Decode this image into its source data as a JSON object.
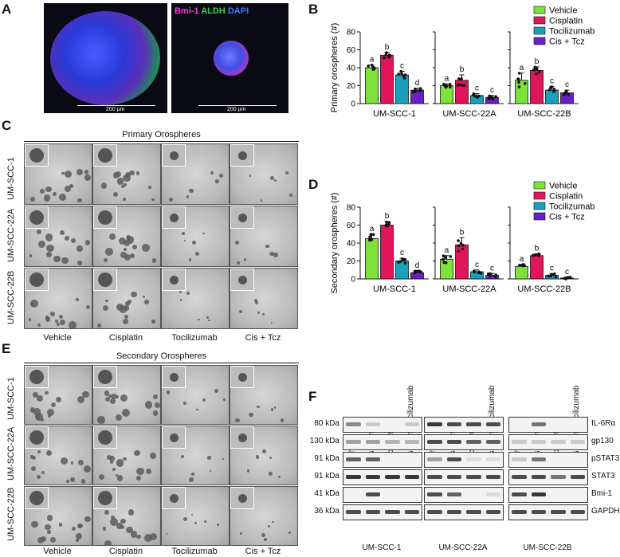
{
  "panels": {
    "a": "A",
    "b": "B",
    "c": "C",
    "d": "D",
    "e": "E",
    "f": "F"
  },
  "panel_a": {
    "stain_bmi1": "Bmi-1",
    "stain_aldh": "ALDH",
    "stain_dapi": "DAPI",
    "scalebar_1": "200 µm",
    "scalebar_2": "200 µm",
    "colors": {
      "bmi1": "#ff3dd8",
      "aldh": "#37d64a",
      "dapi": "#3f7bff"
    }
  },
  "panel_c": {
    "title": "Primary Orospheres",
    "rows": [
      "UM-SCC-1",
      "UM-SCC-22A",
      "UM-SCC-22B"
    ],
    "cols": [
      "Vehicle",
      "Cisplatin",
      "Tocilizumab",
      "Cis + Tcz"
    ]
  },
  "panel_e": {
    "title": "Secondary Orospheres",
    "rows": [
      "UM-SCC-1",
      "UM-SCC-22A",
      "UM-SCC-22B"
    ],
    "cols": [
      "Vehicle",
      "Cisplatin",
      "Tocilizumab",
      "Cis + Tcz"
    ]
  },
  "chart_data": [
    {
      "type": "bar",
      "panel": "B",
      "ylabel": "Primary orospheres (#)",
      "ylim": [
        0,
        80
      ],
      "yticks": [
        0,
        20,
        40,
        60,
        80
      ],
      "groups": [
        "UM-SCC-1",
        "UM-SCC-22A",
        "UM-SCC-22B"
      ],
      "legend": [
        "Vehicle",
        "Cisplatin",
        "Tocilizumab",
        "Cis + Tcz"
      ],
      "legend_position": "top-right",
      "colors": [
        "#7ee23b",
        "#e0155a",
        "#1aa0bf",
        "#6a1fc9"
      ],
      "series": [
        {
          "name": "Vehicle",
          "values": [
            40,
            20,
            26
          ],
          "errors": [
            3,
            2,
            8
          ],
          "letters": [
            "a",
            "a",
            "a"
          ]
        },
        {
          "name": "Cisplatin",
          "values": [
            54,
            26,
            37
          ],
          "errors": [
            3,
            6,
            4
          ],
          "letters": [
            "b",
            "b",
            "b"
          ]
        },
        {
          "name": "Tocilizumab",
          "values": [
            32,
            9,
            15
          ],
          "errors": [
            4,
            2,
            4
          ],
          "letters": [
            "c",
            "c",
            "c"
          ]
        },
        {
          "name": "Cis + Tcz",
          "values": [
            15,
            7,
            12
          ],
          "errors": [
            2,
            2,
            3
          ],
          "letters": [
            "d",
            "c",
            "c"
          ]
        }
      ]
    },
    {
      "type": "bar",
      "panel": "D",
      "ylabel": "Secondary orospheres (#)",
      "ylim": [
        0,
        80
      ],
      "yticks": [
        0,
        20,
        40,
        60,
        80
      ],
      "groups": [
        "UM-SCC-1",
        "UM-SCC-22A",
        "UM-SCC-22B"
      ],
      "legend": [
        "Vehicle",
        "Cisplatin",
        "Tocilizumab",
        "Cis + Tcz"
      ],
      "legend_position": "top-right",
      "colors": [
        "#7ee23b",
        "#e0155a",
        "#1aa0bf",
        "#6a1fc9"
      ],
      "series": [
        {
          "name": "Vehicle",
          "values": [
            45,
            22,
            14
          ],
          "errors": [
            5,
            4,
            2
          ],
          "letters": [
            "a",
            "a",
            "a"
          ]
        },
        {
          "name": "Cisplatin",
          "values": [
            60,
            38,
            26
          ],
          "errors": [
            4,
            8,
            2
          ],
          "letters": [
            "b",
            "b",
            "b"
          ]
        },
        {
          "name": "Tocilizumab",
          "values": [
            20,
            8,
            4
          ],
          "errors": [
            3,
            2,
            2
          ],
          "letters": [
            "c",
            "c",
            "c"
          ]
        },
        {
          "name": "Cis + Tcz",
          "values": [
            7,
            4,
            1
          ],
          "errors": [
            2,
            2,
            1
          ],
          "letters": [
            "d",
            "c",
            "c"
          ]
        }
      ]
    }
  ],
  "panel_f": {
    "lanes": [
      "Vehicle",
      "Cisplatin",
      "Tocilizumab",
      "Cisplatin+Tocilizumab"
    ],
    "cell_lines": [
      "UM-SCC-1",
      "UM-SCC-22A",
      "UM-SCC-22B"
    ],
    "mw": [
      "80 kDa",
      "130 kDa",
      "91 kDa",
      "91 kDa",
      "41 kDa",
      "36 kDa"
    ],
    "proteins": [
      "IL-6Rα",
      "gp130",
      "pSTAT3",
      "STAT3",
      "Bmi-1",
      "GAPDH"
    ],
    "band_intensity": [
      [
        [
          0.5,
          0.2,
          0,
          0.2
        ],
        [
          0.9,
          0.8,
          0.8,
          0.8
        ],
        [
          0,
          0.6,
          0,
          0
        ]
      ],
      [
        [
          0.4,
          0.4,
          0.3,
          0.3
        ],
        [
          0.8,
          0.8,
          0.7,
          0.7
        ],
        [
          0.2,
          0.2,
          0.2,
          0.2
        ]
      ],
      [
        [
          0.7,
          0.7,
          0,
          0
        ],
        [
          0.4,
          0.8,
          0.1,
          0.1
        ],
        [
          0.2,
          0.6,
          0,
          0
        ]
      ],
      [
        [
          0.9,
          0.9,
          0.9,
          0.9
        ],
        [
          0.8,
          0.8,
          0.8,
          0.8
        ],
        [
          0.8,
          0.8,
          0.6,
          0.8
        ]
      ],
      [
        [
          0,
          0.8,
          0,
          0
        ],
        [
          0.8,
          0.7,
          0,
          0.1
        ],
        [
          0.8,
          0.9,
          0,
          0
        ]
      ],
      [
        [
          0.8,
          0.8,
          0.8,
          0.8
        ],
        [
          0.8,
          0.8,
          0.8,
          0.8
        ],
        [
          0.8,
          0.8,
          0.8,
          0.8
        ]
      ]
    ]
  }
}
